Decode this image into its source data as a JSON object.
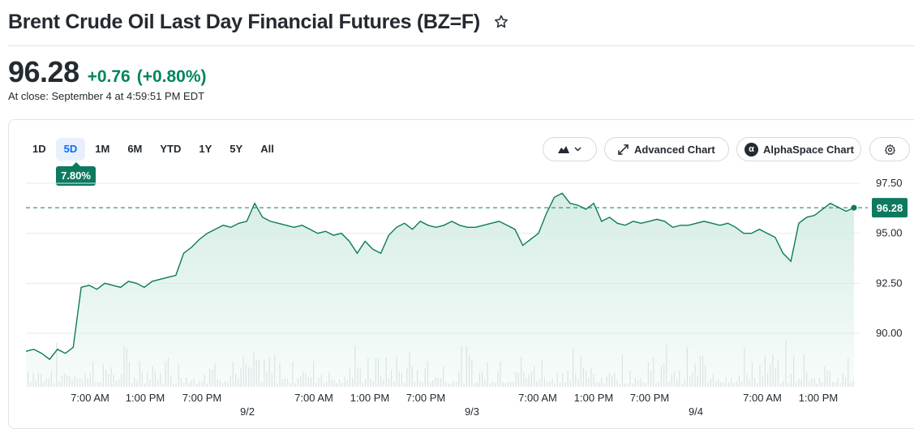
{
  "header": {
    "title": "Brent Crude Oil Last Day Financial Futures (BZ=F)",
    "price": "96.28",
    "change": "+0.76",
    "change_pct": "(+0.80%)",
    "close_time": "At close: September 4 at 4:59:51 PM EDT"
  },
  "range_tabs": [
    "1D",
    "5D",
    "1M",
    "6M",
    "YTD",
    "1Y",
    "5Y",
    "All"
  ],
  "active_range": "5D",
  "range_change_badge": "7.80%",
  "toolbar": {
    "chart_type_icon": "mountain-icon",
    "advanced_chart_label": "Advanced Chart",
    "alphaspace_chart_label": "AlphaSpace Chart",
    "alphaspace_logo": "α",
    "settings_icon": "gear-icon"
  },
  "colors": {
    "up": "#008560",
    "line": "#0d7a5f",
    "fill": "#d3ece3",
    "active_tab_bg": "#e8f1fb",
    "active_tab_text": "#0f69ff"
  },
  "chart_data": {
    "type": "area",
    "y_ticks": [
      "97.50",
      "95.00",
      "92.50",
      "90.00"
    ],
    "ylim": [
      88.5,
      97.6
    ],
    "x_ticks": [
      "7:00 AM",
      "1:00 PM",
      "7:00 PM",
      "7:00 AM",
      "1:00 PM",
      "7:00 PM",
      "7:00 AM",
      "1:00 PM",
      "7:00 PM",
      "7:00 AM",
      "1:00 PM"
    ],
    "day_labels": [
      "9/2",
      "9/3",
      "9/4"
    ],
    "last_price_label": "96.28",
    "reference_price": 96.28,
    "reference_line": "dashed",
    "grid": true,
    "series": [
      {
        "values": [
          89.1,
          89.2,
          89.0,
          88.7,
          89.2,
          89.0,
          89.3,
          92.3,
          92.4,
          92.2,
          92.5,
          92.4,
          92.3,
          92.6,
          92.5,
          92.3,
          92.6,
          92.7,
          92.8,
          92.9,
          94.0,
          94.3,
          94.7,
          95.0,
          95.2,
          95.4,
          95.3,
          95.5,
          95.6,
          96.5,
          95.8,
          95.6,
          95.5,
          95.4,
          95.3,
          95.4,
          95.2,
          95.0,
          95.1,
          94.9,
          95.0,
          94.6,
          94.0,
          94.6,
          94.2,
          94.0,
          94.9,
          95.3,
          95.5,
          95.2,
          95.6,
          95.4,
          95.3,
          95.4,
          95.6,
          95.4,
          95.3,
          95.3,
          95.4,
          95.5,
          95.6,
          95.4,
          95.2,
          94.4,
          94.7,
          95.0,
          96.0,
          96.8,
          97.0,
          96.5,
          96.4,
          96.2,
          96.5,
          95.6,
          95.8,
          95.5,
          95.4,
          95.6,
          95.5,
          95.6,
          95.7,
          95.6,
          95.3,
          95.4,
          95.4,
          95.5,
          95.6,
          95.5,
          95.4,
          95.5,
          95.3,
          95.0,
          95.0,
          95.2,
          95.0,
          94.8,
          94.0,
          93.6,
          95.5,
          95.8,
          95.9,
          96.2,
          96.5,
          96.3,
          96.1,
          96.28
        ],
        "volume_note": "volume bars shown beneath price area"
      }
    ]
  }
}
